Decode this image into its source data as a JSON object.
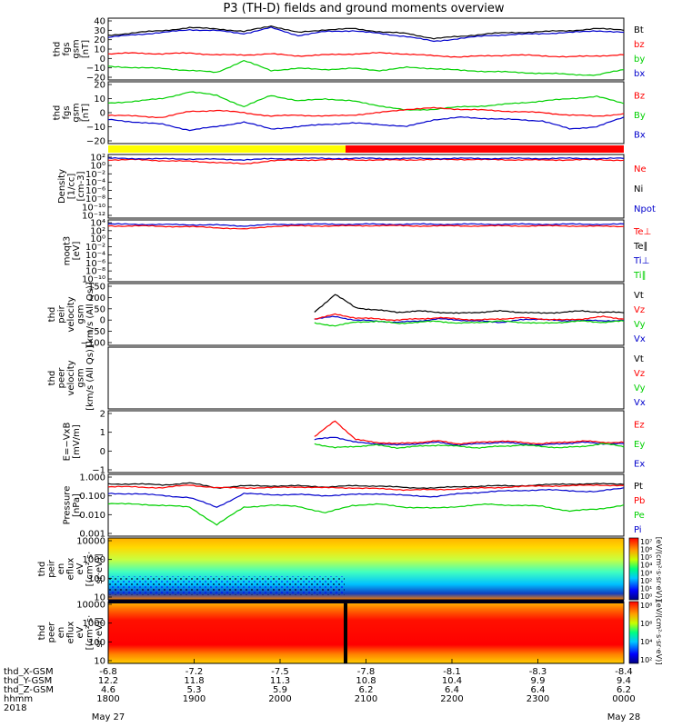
{
  "title": "P3 (TH-D) fields and ground moments overview",
  "colors": {
    "black": "#000000",
    "red": "#ff0000",
    "green": "#00d000",
    "blue": "#0000cc",
    "yellow": "#ffff00"
  },
  "time_axis": {
    "ticks": [
      {
        "rows": [
          "-6.8",
          "12.2",
          "4.6",
          "1800"
        ]
      },
      {
        "rows": [
          "-7.2",
          "11.8",
          "5.3",
          "1900"
        ]
      },
      {
        "rows": [
          "-7.5",
          "11.3",
          "5.9",
          "2000"
        ]
      },
      {
        "rows": [
          "-7.8",
          "10.8",
          "6.2",
          "2100"
        ]
      },
      {
        "rows": [
          "-8.1",
          "10.4",
          "6.4",
          "2200"
        ]
      },
      {
        "rows": [
          "-8.3",
          "9.9",
          "6.4",
          "2300"
        ]
      },
      {
        "rows": [
          "-8.4",
          "9.4",
          "6.2",
          "0000"
        ]
      }
    ],
    "row_labels": [
      "thd_X-GSM",
      "thd_Y-GSM",
      "thd_Z-GSM",
      "hhmm",
      "2018"
    ],
    "start_date": "May 27",
    "end_date": "May 28"
  },
  "chart_data": [
    {
      "type": "line",
      "id": "p1",
      "ylabel": [
        "thd",
        "fgs",
        "gsm",
        "[nT]"
      ],
      "yticks": [
        "40",
        "30",
        "20",
        "10",
        "0",
        "−10",
        "−20"
      ],
      "ylim": [
        -20,
        40
      ],
      "legend": [
        {
          "name": "Bt",
          "color": "#000000"
        },
        {
          "name": "bz",
          "color": "#ff0000"
        },
        {
          "name": "by",
          "color": "#00d000"
        },
        {
          "name": "bx",
          "color": "#0000cc"
        }
      ],
      "series": [
        {
          "name": "bx",
          "color": "#0000cc",
          "values": [
            22,
            25,
            27,
            30,
            29,
            26,
            32,
            24,
            28,
            29,
            26,
            23,
            18,
            21,
            24,
            25,
            26,
            27,
            29,
            27
          ]
        },
        {
          "name": "Bt",
          "color": "#000000",
          "values": [
            24,
            27,
            29,
            32,
            31,
            28,
            34,
            27,
            30,
            31,
            28,
            26,
            21,
            23,
            26,
            27,
            28,
            29,
            31,
            30
          ]
        },
        {
          "name": "bz",
          "color": "#ff0000",
          "values": [
            5,
            6,
            5,
            6,
            4,
            4,
            5,
            3,
            4,
            5,
            6,
            5,
            3,
            2,
            3,
            4,
            3,
            2,
            3,
            4
          ]
        },
        {
          "name": "by",
          "color": "#00d000",
          "values": [
            -8,
            -9,
            -10,
            -12,
            -14,
            -2,
            -12,
            -10,
            -11,
            -10,
            -12,
            -9,
            -10,
            -12,
            -13,
            -14,
            -15,
            -16,
            -17,
            -11
          ]
        }
      ]
    },
    {
      "type": "line",
      "id": "p2",
      "ylabel": [
        "thd",
        "fgs",
        "gsm",
        "[nT]"
      ],
      "yticks": [
        "20",
        "10",
        "0",
        "−10",
        "−20"
      ],
      "ylim": [
        -25,
        25
      ],
      "legend": [
        {
          "name": "Bz",
          "color": "#ff0000"
        },
        {
          "name": "By",
          "color": "#00d000"
        },
        {
          "name": "Bx",
          "color": "#0000cc"
        }
      ],
      "series": [
        {
          "name": "By",
          "color": "#00d000",
          "values": [
            8,
            10,
            12,
            18,
            15,
            5,
            15,
            10,
            12,
            10,
            6,
            2,
            3,
            5,
            6,
            8,
            10,
            12,
            14,
            8
          ]
        },
        {
          "name": "Bz",
          "color": "#ff0000",
          "values": [
            -2,
            -3,
            -4,
            1,
            2,
            0,
            -3,
            -2,
            -3,
            -2,
            0,
            3,
            4,
            3,
            2,
            1,
            0,
            -2,
            -3,
            -1
          ]
        },
        {
          "name": "Bx",
          "color": "#0000cc",
          "values": [
            -6,
            -8,
            -10,
            -15,
            -12,
            -8,
            -14,
            -12,
            -10,
            -9,
            -10,
            -12,
            -6,
            -4,
            -5,
            -6,
            -7,
            -14,
            -12,
            -4
          ]
        }
      ]
    },
    {
      "type": "line",
      "id": "p3",
      "ylabel": [
        "Density",
        "[1/cc]",
        "[cm-3]"
      ],
      "yticks": [
        "10²",
        "10⁰",
        "10⁻²",
        "10⁻⁴",
        "10⁻⁶",
        "10⁻⁸",
        "10⁻¹⁰",
        "10⁻¹²"
      ],
      "ylim": [
        -12,
        2
      ],
      "yscale": "log",
      "legend": [
        {
          "name": "Ne",
          "color": "#ff0000"
        },
        {
          "name": "Ni",
          "color": "#000000"
        },
        {
          "name": "Npot",
          "color": "#0000cc"
        }
      ],
      "series": [
        {
          "name": "Ne",
          "color": "#ff0000",
          "values": [
            1.2,
            1.2,
            1.0,
            0.8,
            0.6,
            0.2,
            1.0,
            1.1,
            1.2,
            1.2,
            1.1,
            1.2,
            1.2,
            1.3,
            1.2,
            1.2,
            1.1,
            1.2,
            1.2,
            1.1
          ]
        },
        {
          "name": "Npot",
          "color": "#0000cc",
          "values": [
            1.5,
            1.5,
            1.4,
            1.4,
            1.3,
            1.2,
            1.4,
            1.5,
            1.5,
            1.5,
            1.5,
            1.5,
            1.5,
            1.5,
            1.5,
            1.5,
            1.5,
            1.5,
            1.5,
            1.5
          ]
        }
      ]
    },
    {
      "type": "line",
      "id": "p4",
      "ylabel": [
        "moqt3",
        "[eV]"
      ],
      "yticks": [
        "10⁴",
        "10²",
        "10⁰",
        "10⁻²",
        "10⁻⁴",
        "10⁻⁶",
        "10⁻⁸",
        "10⁻¹⁰"
      ],
      "ylim": [
        -10,
        4
      ],
      "yscale": "log",
      "legend": [
        {
          "name": "Te⊥",
          "color": "#ff0000"
        },
        {
          "name": "Te∥",
          "color": "#000000"
        },
        {
          "name": "Ti⊥",
          "color": "#0000cc"
        },
        {
          "name": "Ti∥",
          "color": "#00d000"
        }
      ],
      "series": [
        {
          "name": "Ti⊥",
          "color": "#0000cc",
          "values": [
            3.4,
            3.4,
            3.3,
            3.3,
            3.2,
            3.0,
            3.3,
            3.4,
            3.4,
            3.4,
            3.4,
            3.4,
            3.4,
            3.4,
            3.4,
            3.4,
            3.4,
            3.4,
            3.4,
            3.4
          ]
        },
        {
          "name": "Te⊥",
          "color": "#ff0000",
          "values": [
            3.0,
            3.0,
            2.9,
            2.8,
            2.6,
            2.2,
            2.9,
            3.0,
            3.0,
            3.0,
            3.1,
            3.0,
            3.0,
            3.0,
            3.0,
            3.0,
            3.0,
            3.0,
            2.9,
            2.9
          ]
        }
      ]
    },
    {
      "type": "line",
      "id": "p5",
      "ylabel": [
        "thd",
        "peir",
        "velocity",
        "gsm",
        "[km/s (All Qs)]"
      ],
      "yticks": [
        "150",
        "100",
        "50",
        "0",
        "−50",
        "−100"
      ],
      "ylim": [
        -100,
        160
      ],
      "legend": [
        {
          "name": "Vt",
          "color": "#000000"
        },
        {
          "name": "Vz",
          "color": "#ff0000"
        },
        {
          "name": "Vy",
          "color": "#00d000"
        },
        {
          "name": "Vx",
          "color": "#0000cc"
        }
      ],
      "x_start": 0.4,
      "series": [
        {
          "name": "Vt",
          "color": "#000000",
          "values": [
            40,
            120,
            60,
            50,
            40,
            45,
            40,
            35,
            40,
            45,
            40,
            35,
            40,
            45,
            40,
            38
          ]
        },
        {
          "name": "Vx",
          "color": "#0000cc",
          "values": [
            10,
            20,
            5,
            0,
            -5,
            0,
            10,
            5,
            0,
            -5,
            5,
            10,
            0,
            5,
            0,
            5
          ]
        },
        {
          "name": "Vy",
          "color": "#00d000",
          "values": [
            -10,
            -20,
            -5,
            0,
            -10,
            -5,
            0,
            -10,
            -5,
            0,
            -5,
            -10,
            -5,
            0,
            -5,
            0
          ]
        },
        {
          "name": "Vz",
          "color": "#ff0000",
          "values": [
            10,
            30,
            15,
            10,
            5,
            10,
            15,
            10,
            5,
            10,
            15,
            10,
            5,
            10,
            20,
            10
          ]
        }
      ]
    },
    {
      "type": "line",
      "id": "p6",
      "ylabel": [
        "thd",
        "peer",
        "velocity",
        "gsm",
        "[km/s (All Qs)]"
      ],
      "yticks": [],
      "legend": [
        {
          "name": "Vt",
          "color": "#000000"
        },
        {
          "name": "Vz",
          "color": "#ff0000"
        },
        {
          "name": "Vy",
          "color": "#00d000"
        },
        {
          "name": "Vx",
          "color": "#0000cc"
        }
      ],
      "series": []
    },
    {
      "type": "line",
      "id": "p7",
      "ylabel": [
        "E=−VxB",
        "[mV/m]"
      ],
      "yticks": [
        "2",
        "1",
        "0",
        "−1"
      ],
      "ylim": [
        -1.5,
        2.8
      ],
      "legend": [
        {
          "name": "Ez",
          "color": "#ff0000"
        },
        {
          "name": "Ey",
          "color": "#00d000"
        },
        {
          "name": "Ex",
          "color": "#0000cc"
        }
      ],
      "x_start": 0.4,
      "series": [
        {
          "name": "Ex",
          "color": "#0000cc",
          "values": [
            0.8,
            1.0,
            0.6,
            0.5,
            0.4,
            0.5,
            0.6,
            0.4,
            0.5,
            0.6,
            0.5,
            0.4,
            0.5,
            0.6,
            0.5,
            0.5
          ]
        },
        {
          "name": "Ey",
          "color": "#00d000",
          "values": [
            0.5,
            0.2,
            0.3,
            0.4,
            0.2,
            0.3,
            0.4,
            0.3,
            0.2,
            0.3,
            0.4,
            0.3,
            0.2,
            0.3,
            0.5,
            0.3
          ]
        },
        {
          "name": "Ez",
          "color": "#ff0000",
          "values": [
            1.0,
            2.2,
            0.8,
            0.6,
            0.5,
            0.6,
            0.7,
            0.5,
            0.6,
            0.7,
            0.6,
            0.5,
            0.6,
            0.7,
            0.6,
            0.6
          ]
        }
      ]
    },
    {
      "type": "line",
      "id": "p8",
      "ylabel": [
        "Pressure",
        "[nPa]"
      ],
      "yticks": [
        "1.000",
        "0.100",
        "0.010",
        "0.001"
      ],
      "ylim": [
        -3,
        0
      ],
      "yscale": "log",
      "legend": [
        {
          "name": "Pt",
          "color": "#000000"
        },
        {
          "name": "Pb",
          "color": "#ff0000"
        },
        {
          "name": "Pe",
          "color": "#00d000"
        },
        {
          "name": "Pi",
          "color": "#0000cc"
        }
      ],
      "series": [
        {
          "name": "Pt",
          "color": "#000000",
          "values": [
            -0.4,
            -0.4,
            -0.45,
            -0.35,
            -0.6,
            -0.5,
            -0.5,
            -0.5,
            -0.55,
            -0.5,
            -0.5,
            -0.6,
            -0.6,
            -0.55,
            -0.5,
            -0.5,
            -0.45,
            -0.4,
            -0.4,
            -0.4
          ]
        },
        {
          "name": "Pb",
          "color": "#ff0000",
          "values": [
            -0.55,
            -0.55,
            -0.6,
            -0.45,
            -0.6,
            -0.6,
            -0.6,
            -0.55,
            -0.6,
            -0.6,
            -0.65,
            -0.7,
            -0.7,
            -0.65,
            -0.6,
            -0.55,
            -0.5,
            -0.5,
            -0.45,
            -0.5
          ]
        },
        {
          "name": "Pi",
          "color": "#0000cc",
          "values": [
            -0.9,
            -0.9,
            -1.0,
            -1.1,
            -1.6,
            -0.9,
            -0.95,
            -0.95,
            -1.0,
            -0.95,
            -0.9,
            -1.0,
            -1.05,
            -0.9,
            -0.8,
            -0.75,
            -0.7,
            -0.75,
            -0.8,
            -0.6
          ]
        },
        {
          "name": "Pe",
          "color": "#00d000",
          "values": [
            -1.4,
            -1.45,
            -1.5,
            -1.6,
            -2.5,
            -1.6,
            -1.5,
            -1.55,
            -1.9,
            -1.5,
            -1.45,
            -1.6,
            -1.65,
            -1.55,
            -1.45,
            -1.5,
            -1.55,
            -1.8,
            -1.7,
            -1.5
          ]
        }
      ]
    },
    {
      "type": "heatmap",
      "id": "p9",
      "ylabel": [
        "thd",
        "peir",
        "en",
        "eflux",
        "eV",
        "[(cm²·s·",
        "sr·eV)]"
      ],
      "yticks": [
        "10000",
        "1000",
        "100",
        "10"
      ],
      "yscale": "log",
      "colorbar_label": "[eV/(cm²·s·sr·eV)]",
      "colorbar_ticks": [
        "10⁷",
        "10⁶",
        "10⁵",
        "10⁴",
        "10³",
        "10²",
        "10¹",
        "10⁰"
      ]
    },
    {
      "type": "heatmap",
      "id": "p10",
      "ylabel": [
        "thd",
        "peer",
        "en",
        "eflux",
        "eV",
        "[(cm²·s·",
        "sr·eV)]"
      ],
      "yticks": [
        "10000",
        "1000",
        "100",
        "10"
      ],
      "yscale": "log",
      "colorbar_label": "[eV/(cm²·s·sr·eV)]",
      "colorbar_ticks": [
        "10⁸",
        "10⁶",
        "10⁴",
        "10²"
      ]
    }
  ]
}
